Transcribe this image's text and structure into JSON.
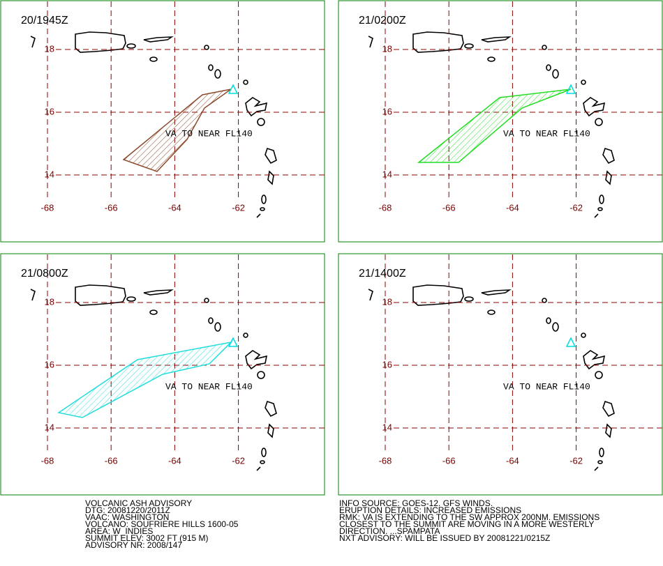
{
  "panels": [
    {
      "time": "20/1945Z"
    },
    {
      "time": "21/0200Z"
    },
    {
      "time": "21/0800Z"
    },
    {
      "time": "21/1400Z"
    }
  ],
  "lat_ticks": [
    18,
    16,
    14
  ],
  "lon_ticks": [
    -68,
    -66,
    -64,
    -62
  ],
  "va_label": "VA TO NEAR FL140",
  "advisory_left": [
    "VOLCANIC ASH ADVISORY",
    "DTG: 20081220/2011Z",
    "VAAC: WASHINGTON",
    "VOLCANO: SOUFRIERE HILLS 1600-05",
    "AREA: W_INDIES",
    "SUMMIT ELEV: 3002 FT (915 M)",
    "ADVISORY NR: 2008/147"
  ],
  "advisory_right": [
    "INFO SOURCE: GOES-12. GFS WINDS.",
    "ERUPTION DETAILS: INCREASED EMISSIONS",
    "RMK: VA IS EXTENDING TO THE SW APPROX 200NM. EMISSIONS",
    "CLOSEST TO THE SUMMIT ARE MOVING IN A MORE WESTERLY",
    "DIRECTION. ...SPAMPATA",
    "NXT ADVISORY: WILL BE ISSUED BY 20081221/0215Z"
  ]
}
